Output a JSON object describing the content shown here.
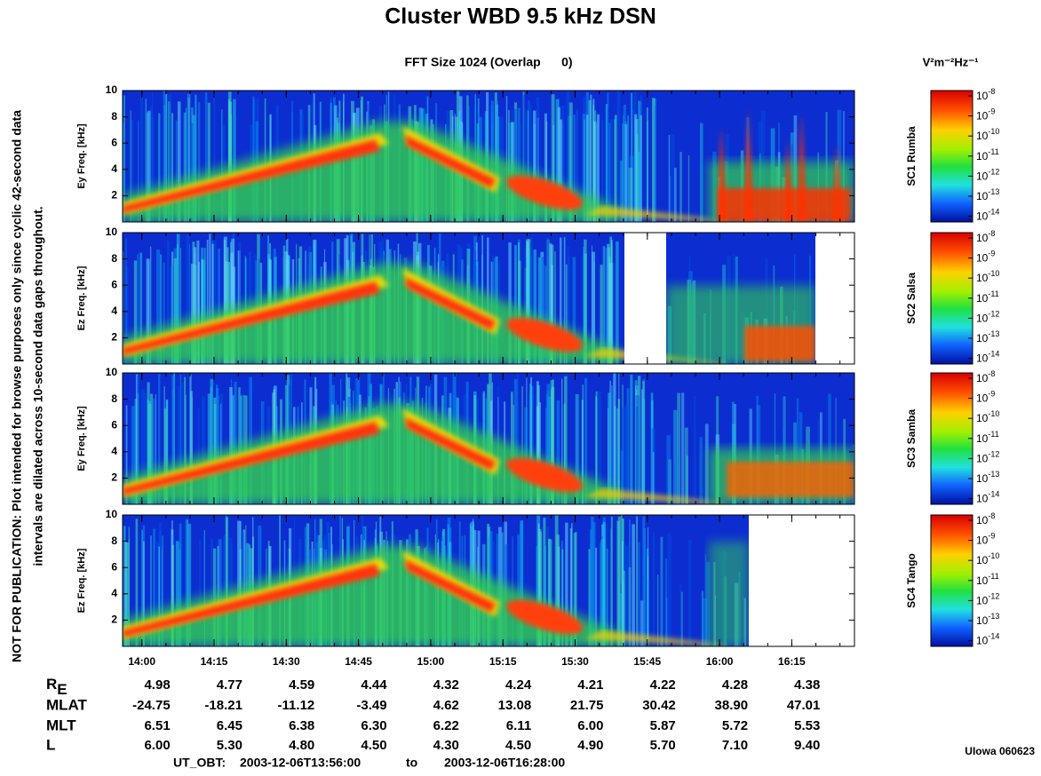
{
  "title": "Cluster WBD 9.5 kHz DSN",
  "subtitle": "FFT Size 1024 (Overlap      0)",
  "colorbar_unit": "V²m⁻²Hz⁻¹",
  "side_note": [
    "NOT FOR PUBLICATION:  Plot intended for browse purposes only since cyclic 42-second data",
    "intervals are dilated across 10-second data gaps throughout."
  ],
  "frequency_axis": {
    "ylim": [
      0,
      10
    ],
    "yticks": [
      2,
      4,
      6,
      8,
      10
    ]
  },
  "colorbar": {
    "base": "10",
    "exponents": [
      "-8",
      "-9",
      "-10",
      "-11",
      "-12",
      "-13",
      "-14"
    ]
  },
  "panels": [
    {
      "ylabel": "Ey Freq. [kHz]",
      "spacecraft": "SC1 Rumba"
    },
    {
      "ylabel": "Ez Freq. [kHz]",
      "spacecraft": "SC2 Salsa"
    },
    {
      "ylabel": "Ey Freq. [kHz]",
      "spacecraft": "SC3 Samba"
    },
    {
      "ylabel": "Ez Freq. [kHz]",
      "spacecraft": "SC4 Tango"
    }
  ],
  "time_ticks": [
    "14:00",
    "14:15",
    "14:30",
    "14:45",
    "15:00",
    "15:15",
    "15:30",
    "15:45",
    "16:00",
    "16:15"
  ],
  "ephemeris": [
    {
      "label": {
        "base": "R",
        "sub": "E"
      },
      "values": [
        "4.98",
        "4.77",
        "4.59",
        "4.44",
        "4.32",
        "4.24",
        "4.21",
        "4.22",
        "4.28",
        "4.38"
      ]
    },
    {
      "label": "MLAT",
      "values": [
        "-24.75",
        "-18.21",
        "-11.12",
        "-3.49",
        "4.62",
        "13.08",
        "21.75",
        "30.42",
        "38.90",
        "47.01"
      ]
    },
    {
      "label": "MLT",
      "values": [
        "6.51",
        "6.45",
        "6.38",
        "6.30",
        "6.22",
        "6.11",
        "6.00",
        "5.87",
        "5.72",
        "5.53"
      ]
    },
    {
      "label": "L",
      "values": [
        "6.00",
        "5.30",
        "4.80",
        "4.50",
        "4.30",
        "4.50",
        "4.90",
        "5.70",
        "7.10",
        "9.40"
      ]
    }
  ],
  "footer": {
    "prefix": "UT_OBT:",
    "start": "2003-12-06T13:56:00",
    "joiner": "to",
    "end": "2003-12-06T16:28:00"
  },
  "credit": "UIowa 060623"
}
